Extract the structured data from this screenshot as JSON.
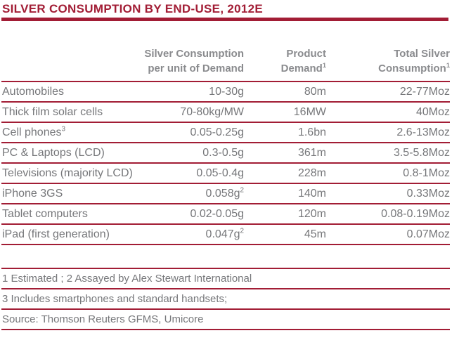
{
  "title": "SILVER CONSUMPTION BY END-USE, 2012E",
  "colors": {
    "accent": "#A21D35",
    "body_text": "#76777A",
    "header_text": "#8A8B8E",
    "background": "#FFFFFF"
  },
  "table": {
    "header": {
      "end_use": "",
      "per_unit": {
        "line1": "Silver Consumption",
        "line2": "per unit of Demand",
        "sup": ""
      },
      "demand": {
        "line1": "Product",
        "line2": "Demand",
        "sup": "1"
      },
      "total": {
        "line1": "Total Silver",
        "line2": "Consumption",
        "sup": "1"
      }
    },
    "rows": [
      {
        "name": "Automobiles",
        "name_sup": "",
        "per_unit": "10-30g",
        "per_unit_sup": "",
        "demand": "80m",
        "total": "22-77Moz"
      },
      {
        "name": "Thick film solar cells",
        "name_sup": "",
        "per_unit": "70-80kg/MW",
        "per_unit_sup": "",
        "demand": "16MW",
        "total": "40Moz"
      },
      {
        "name": "Cell phones",
        "name_sup": "3",
        "per_unit": "0.05-0.25g",
        "per_unit_sup": "",
        "demand": "1.6bn",
        "total": "2.6-13Moz"
      },
      {
        "name": "PC & Laptops (LCD)",
        "name_sup": "",
        "per_unit": "0.3-0.5g",
        "per_unit_sup": "",
        "demand": "361m",
        "total": "3.5-5.8Moz"
      },
      {
        "name": "Televisions (majority LCD)",
        "name_sup": "",
        "per_unit": "0.05-0.4g",
        "per_unit_sup": "",
        "demand": "228m",
        "total": "0.8-1Moz"
      },
      {
        "name": "iPhone 3GS",
        "name_sup": "",
        "per_unit": "0.058g",
        "per_unit_sup": "2",
        "demand": "140m",
        "total": "0.33Moz"
      },
      {
        "name": "Tablet computers",
        "name_sup": "",
        "per_unit": "0.02-0.05g",
        "per_unit_sup": "",
        "demand": "120m",
        "total": "0.08-0.19Moz"
      },
      {
        "name": "iPad (first generation)",
        "name_sup": "",
        "per_unit": "0.047g",
        "per_unit_sup": "2",
        "demand": "45m",
        "total": "0.07Moz"
      }
    ]
  },
  "footnotes": [
    "1 Estimated ; 2 Assayed by Alex Stewart International",
    "3 Includes smartphones and standard handsets;",
    "Source: Thomson Reuters GFMS, Umicore"
  ]
}
